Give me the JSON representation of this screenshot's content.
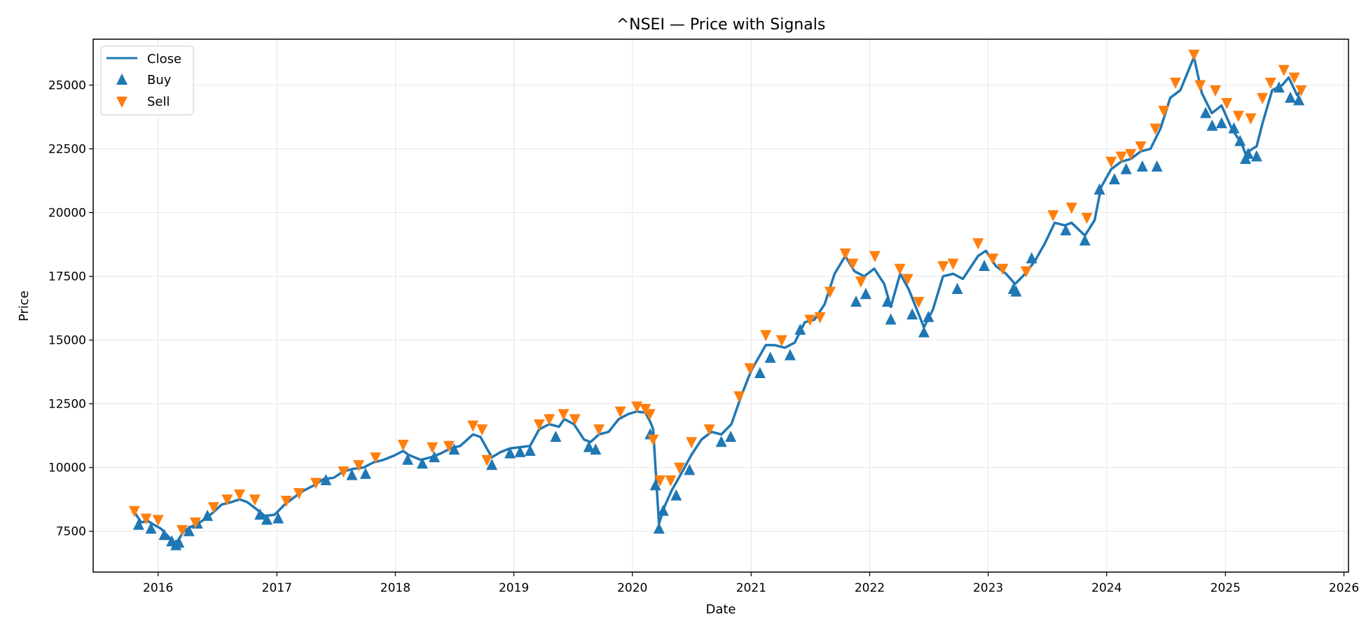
{
  "chart_data": {
    "type": "line",
    "title": "^NSEI — Price with Signals",
    "xlabel": "Date",
    "ylabel": "Price",
    "xlim": [
      "2015-06-15",
      "2026-01-15"
    ],
    "ylim": [
      5900,
      26800
    ],
    "x_ticks": [
      "2016",
      "2017",
      "2018",
      "2019",
      "2020",
      "2021",
      "2022",
      "2023",
      "2024",
      "2025",
      "2026"
    ],
    "y_ticks": [
      7500,
      10000,
      12500,
      15000,
      17500,
      20000,
      22500,
      25000
    ],
    "grid": true,
    "legend_position": "top-left",
    "colors": {
      "close": "#1f77b4",
      "buy": "#1f77b4",
      "sell": "#ff7f0e",
      "grid": "#e6e6e6"
    },
    "series": [
      {
        "name": "Close",
        "kind": "line",
        "x": [
          "2015-10-23",
          "2015-11-10",
          "2015-12-01",
          "2015-12-20",
          "2016-01-10",
          "2016-02-01",
          "2016-02-25",
          "2016-03-20",
          "2016-04-15",
          "2016-05-15",
          "2016-06-15",
          "2016-07-15",
          "2016-08-15",
          "2016-09-08",
          "2016-10-01",
          "2016-11-01",
          "2016-11-25",
          "2016-12-25",
          "2017-01-25",
          "2017-02-25",
          "2017-03-25",
          "2017-04-25",
          "2017-05-25",
          "2017-06-25",
          "2017-07-25",
          "2017-08-25",
          "2017-09-25",
          "2017-10-25",
          "2017-11-25",
          "2017-12-25",
          "2018-01-25",
          "2018-02-10",
          "2018-03-20",
          "2018-04-20",
          "2018-05-20",
          "2018-06-20",
          "2018-07-20",
          "2018-08-28",
          "2018-09-20",
          "2018-10-25",
          "2018-11-20",
          "2018-12-20",
          "2019-01-20",
          "2019-02-20",
          "2019-03-20",
          "2019-04-20",
          "2019-05-20",
          "2019-06-05",
          "2019-07-05",
          "2019-08-05",
          "2019-08-25",
          "2019-09-20",
          "2019-10-20",
          "2019-11-20",
          "2019-12-20",
          "2020-01-15",
          "2020-02-10",
          "2020-02-25",
          "2020-03-05",
          "2020-03-23",
          "2020-04-10",
          "2020-05-01",
          "2020-06-01",
          "2020-07-01",
          "2020-08-01",
          "2020-09-01",
          "2020-10-01",
          "2020-11-01",
          "2020-12-01",
          "2021-01-01",
          "2021-02-15",
          "2021-03-15",
          "2021-04-15",
          "2021-05-15",
          "2021-06-15",
          "2021-07-15",
          "2021-08-15",
          "2021-09-15",
          "2021-10-18",
          "2021-11-15",
          "2021-12-15",
          "2022-01-15",
          "2022-02-15",
          "2022-03-07",
          "2022-04-05",
          "2022-05-01",
          "2022-06-17",
          "2022-07-15",
          "2022-08-15",
          "2022-09-15",
          "2022-10-15",
          "2022-12-01",
          "2022-12-25",
          "2023-01-25",
          "2023-02-25",
          "2023-03-25",
          "2023-04-25",
          "2023-05-25",
          "2023-06-25",
          "2023-07-25",
          "2023-08-25",
          "2023-09-15",
          "2023-10-26",
          "2023-11-25",
          "2023-12-15",
          "2024-01-15",
          "2024-02-15",
          "2024-03-15",
          "2024-04-15",
          "2024-05-15",
          "2024-06-15",
          "2024-07-15",
          "2024-08-15",
          "2024-09-26",
          "2024-10-20",
          "2024-11-20",
          "2024-12-20",
          "2025-01-20",
          "2025-02-20",
          "2025-03-04",
          "2025-03-25",
          "2025-04-07",
          "2025-04-25",
          "2025-05-25",
          "2025-06-25",
          "2025-07-15",
          "2025-08-10",
          "2025-08-22"
        ],
        "y": [
          8200,
          7850,
          7900,
          7750,
          7600,
          7300,
          7000,
          7500,
          7700,
          7900,
          8200,
          8550,
          8650,
          8750,
          8650,
          8350,
          8100,
          8150,
          8550,
          8850,
          9100,
          9300,
          9550,
          9600,
          9850,
          9950,
          10000,
          10200,
          10300,
          10450,
          10650,
          10500,
          10300,
          10400,
          10550,
          10750,
          10850,
          11300,
          11200,
          10400,
          10600,
          10750,
          10800,
          10850,
          11500,
          11700,
          11600,
          11900,
          11700,
          11100,
          11000,
          11300,
          11400,
          11900,
          12100,
          12200,
          12150,
          11800,
          11500,
          7800,
          8500,
          9100,
          9800,
          10500,
          11100,
          11400,
          11300,
          11700,
          12800,
          13800,
          14800,
          14800,
          14700,
          14900,
          15700,
          15800,
          16400,
          17600,
          18300,
          17700,
          17500,
          17800,
          17200,
          16300,
          17600,
          17000,
          15500,
          16200,
          17500,
          17600,
          17400,
          18300,
          18500,
          17900,
          17600,
          17200,
          17600,
          18100,
          18800,
          19600,
          19500,
          19600,
          19100,
          19700,
          21000,
          21700,
          22000,
          22100,
          22400,
          22500,
          23300,
          24500,
          24800,
          26100,
          24700,
          23900,
          24200,
          23300,
          22700,
          22300,
          22500,
          22600,
          23500,
          24800,
          25000,
          25300,
          24600,
          24800
        ]
      },
      {
        "name": "Buy",
        "kind": "marker-up",
        "x": [
          "2015-11-02",
          "2015-12-10",
          "2016-01-20",
          "2016-02-12",
          "2016-02-25",
          "2016-03-05",
          "2016-04-05",
          "2016-05-01",
          "2016-06-01",
          "2016-11-10",
          "2016-12-01",
          "2017-01-05",
          "2017-06-01",
          "2017-08-20",
          "2017-10-01",
          "2018-02-08",
          "2018-03-25",
          "2018-05-01",
          "2018-07-01",
          "2018-10-25",
          "2018-12-20",
          "2019-01-20",
          "2019-02-20",
          "2019-05-10",
          "2019-08-20",
          "2019-09-10",
          "2020-02-25",
          "2020-03-12",
          "2020-03-23",
          "2020-04-05",
          "2020-05-15",
          "2020-06-25",
          "2020-10-01",
          "2020-10-30",
          "2021-01-28",
          "2021-03-01",
          "2021-05-01",
          "2021-06-01",
          "2021-11-20",
          "2021-12-20",
          "2022-02-25",
          "2022-03-07",
          "2022-05-12",
          "2022-06-17",
          "2022-07-01",
          "2022-09-28",
          "2022-12-20",
          "2023-03-20",
          "2023-03-28",
          "2023-05-15",
          "2023-08-28",
          "2023-10-26",
          "2023-12-10",
          "2024-01-25",
          "2024-03-01",
          "2024-04-20",
          "2024-06-04",
          "2024-11-01",
          "2024-11-21",
          "2024-12-20",
          "2025-01-27",
          "2025-02-15",
          "2025-03-04",
          "2025-03-12",
          "2025-04-07",
          "2025-06-15",
          "2025-07-20",
          "2025-08-15"
        ],
        "y": [
          7750,
          7600,
          7350,
          7100,
          6950,
          7050,
          7500,
          7800,
          8100,
          8150,
          7950,
          8000,
          9500,
          9700,
          9750,
          10300,
          10150,
          10400,
          10700,
          10100,
          10550,
          10600,
          10650,
          11200,
          10800,
          10700,
          11300,
          9300,
          7600,
          8300,
          8900,
          9900,
          11000,
          11200,
          13700,
          14300,
          14400,
          15400,
          16500,
          16800,
          16500,
          15800,
          16000,
          15300,
          15900,
          17000,
          17900,
          17000,
          16900,
          18200,
          19300,
          18900,
          20900,
          21300,
          21700,
          21800,
          21800,
          23900,
          23400,
          23500,
          23300,
          22800,
          22100,
          22300,
          22200,
          24900,
          24500,
          24400
        ]
      },
      {
        "name": "Sell",
        "kind": "marker-down",
        "x": [
          "2015-10-20",
          "2015-11-25",
          "2016-01-01",
          "2016-03-15",
          "2016-04-25",
          "2016-06-20",
          "2016-08-01",
          "2016-09-08",
          "2016-10-25",
          "2017-01-30",
          "2017-03-10",
          "2017-05-01",
          "2017-07-25",
          "2017-09-10",
          "2017-11-01",
          "2018-01-25",
          "2018-04-25",
          "2018-06-15",
          "2018-08-28",
          "2018-09-25",
          "2018-10-10",
          "2019-03-20",
          "2019-04-20",
          "2019-06-03",
          "2019-07-08",
          "2019-09-20",
          "2019-11-25",
          "2020-01-15",
          "2020-02-10",
          "2020-02-24",
          "2020-03-05",
          "2020-03-26",
          "2020-04-28",
          "2020-05-25",
          "2020-07-01",
          "2020-08-25",
          "2020-11-25",
          "2020-12-28",
          "2021-02-15",
          "2021-04-05",
          "2021-07-01",
          "2021-08-01",
          "2021-09-01",
          "2021-10-18",
          "2021-11-10",
          "2021-12-05",
          "2022-01-17",
          "2022-04-04",
          "2022-04-28",
          "2022-06-01",
          "2022-08-15",
          "2022-09-15",
          "2022-12-01",
          "2023-01-15",
          "2023-02-15",
          "2023-04-28",
          "2023-07-20",
          "2023-09-15",
          "2023-11-01",
          "2024-01-15",
          "2024-02-15",
          "2024-03-15",
          "2024-04-15",
          "2024-05-30",
          "2024-06-25",
          "2024-07-31",
          "2024-09-26",
          "2024-10-15",
          "2024-12-01",
          "2025-01-05",
          "2025-02-10",
          "2025-03-20",
          "2025-04-25",
          "2025-05-20",
          "2025-06-30",
          "2025-08-01",
          "2025-08-22"
        ],
        "y": [
          8300,
          8000,
          7950,
          7550,
          7850,
          8450,
          8750,
          8950,
          8750,
          8700,
          9000,
          9400,
          9850,
          10100,
          10400,
          10900,
          10800,
          10850,
          11650,
          11500,
          10300,
          11700,
          11900,
          12100,
          11900,
          11500,
          12200,
          12400,
          12300,
          12100,
          11100,
          9500,
          9500,
          10000,
          11000,
          11500,
          12800,
          13900,
          15200,
          15000,
          15800,
          15900,
          16900,
          18400,
          18000,
          17300,
          18300,
          17800,
          17400,
          16500,
          17900,
          18000,
          18800,
          18200,
          17800,
          17700,
          19900,
          20200,
          19800,
          22000,
          22200,
          22300,
          22600,
          23300,
          24000,
          25100,
          26200,
          25000,
          24800,
          24300,
          23800,
          23700,
          24500,
          25100,
          25600,
          25300,
          24800
        ]
      }
    ]
  }
}
